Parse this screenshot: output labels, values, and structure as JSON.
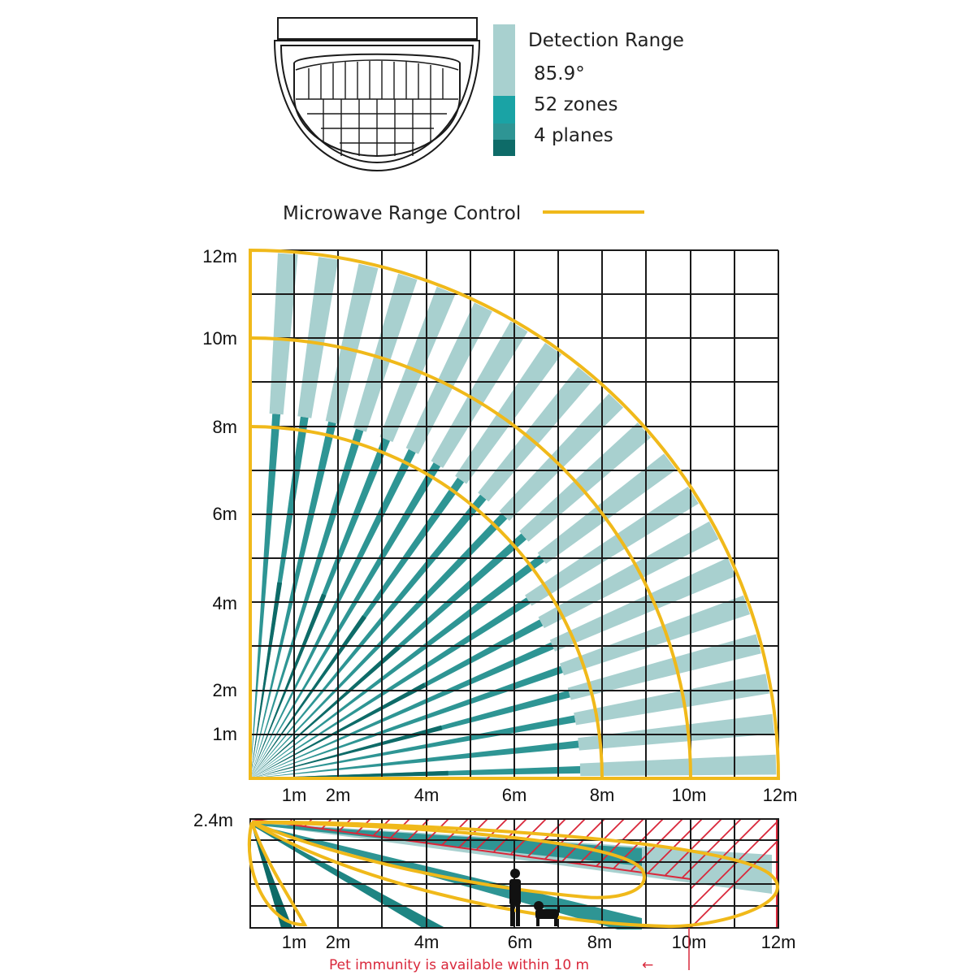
{
  "legend": {
    "title": "Detection Range",
    "angle": "85.9°",
    "zones": "52 zones",
    "planes": "4 planes",
    "microwave": "Microwave Range Control"
  },
  "top_view": {
    "y_ticks": [
      "12m",
      "10m",
      "8m",
      "6m",
      "4m",
      "2m",
      "1m"
    ],
    "x_ticks": [
      "1m",
      "2m",
      "4m",
      "6m",
      "8m",
      "10m",
      "12m"
    ]
  },
  "side_view": {
    "height_label": "2.4m",
    "x_ticks": [
      "1m",
      "2m",
      "4m",
      "6m",
      "8m",
      "10m",
      "12m"
    ],
    "note": "Pet immunity is available within 10 m",
    "note_arrow": "←"
  },
  "colors": {
    "detection_light": "#a8d0cf",
    "zone_mid": "#1aa3a5",
    "plane_dark": "#2e9594",
    "plane_darkest": "#0e6b68",
    "microwave": "#f0b91a",
    "pet_zone": "#d9283b",
    "grid": "#1a1a1a"
  },
  "icons": [
    "pir-sensor-lens-icon",
    "person-silhouette-icon",
    "dog-silhouette-icon"
  ]
}
